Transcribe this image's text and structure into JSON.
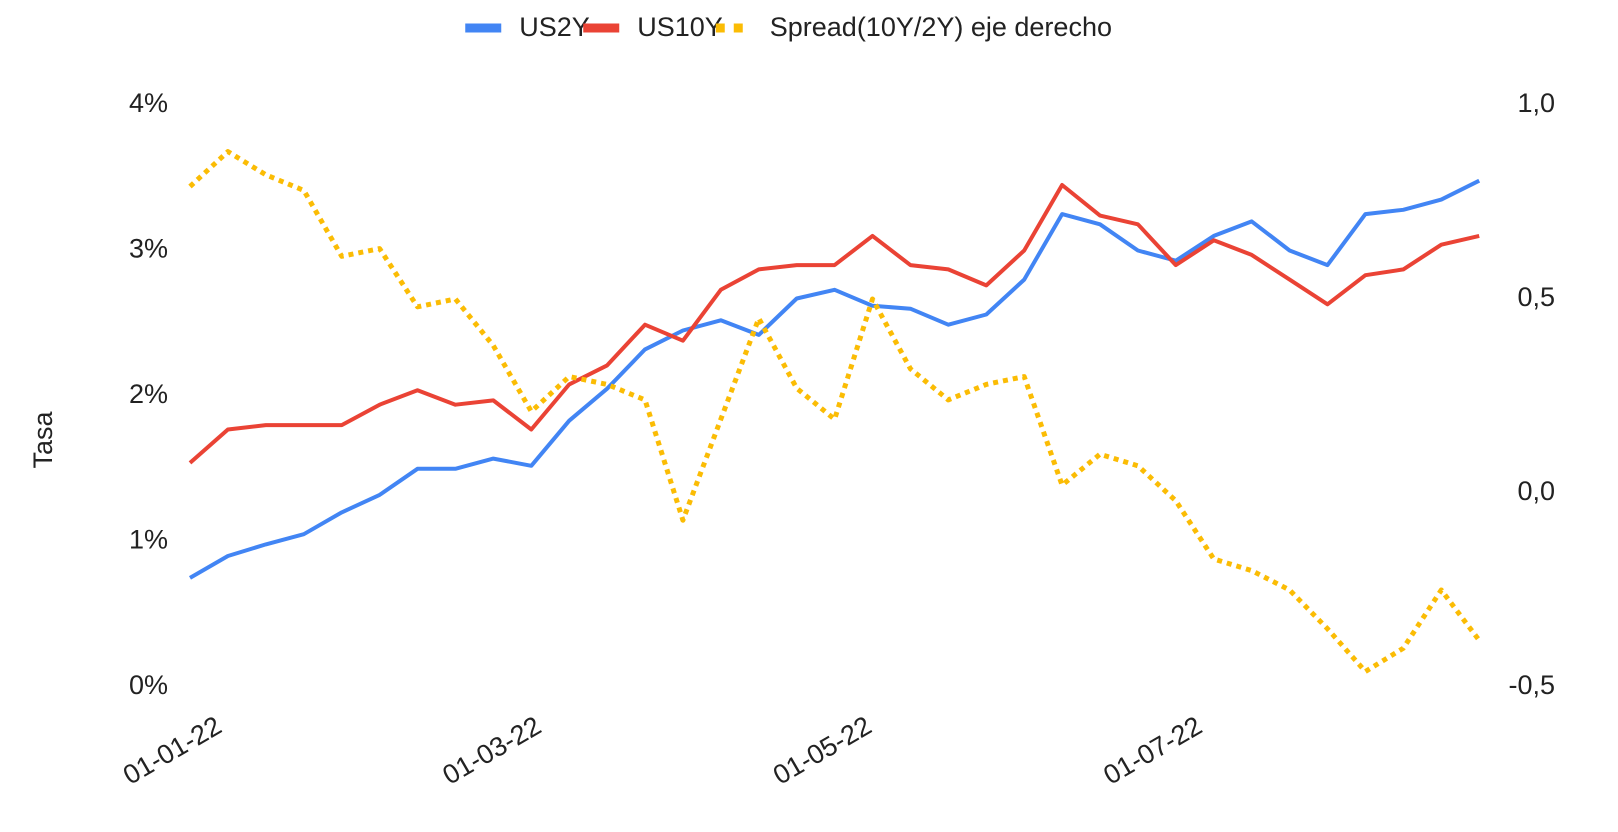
{
  "chart_data": {
    "type": "line",
    "y_label": "Tasa",
    "legend": "top",
    "x": [
      "2022-01-01",
      "2022-01-08",
      "2022-01-15",
      "2022-01-22",
      "2022-01-29",
      "2022-02-05",
      "2022-02-12",
      "2022-02-19",
      "2022-02-26",
      "2022-03-05",
      "2022-03-12",
      "2022-03-19",
      "2022-03-26",
      "2022-04-02",
      "2022-04-09",
      "2022-04-16",
      "2022-04-23",
      "2022-04-30",
      "2022-05-07",
      "2022-05-14",
      "2022-05-21",
      "2022-05-28",
      "2022-06-04",
      "2022-06-11",
      "2022-06-18",
      "2022-06-25",
      "2022-07-02",
      "2022-07-09",
      "2022-07-16",
      "2022-07-23",
      "2022-07-30",
      "2022-08-06",
      "2022-08-13",
      "2022-08-20",
      "2022-08-27"
    ],
    "xlim": [
      "2022-01-01",
      "2022-08-29"
    ],
    "xticks": [
      {
        "value": "2022-01-01",
        "label": "01-01-22"
      },
      {
        "value": "2022-03-01",
        "label": "01-03-22"
      },
      {
        "value": "2022-05-01",
        "label": "01-05-22"
      },
      {
        "value": "2022-07-01",
        "label": "01-07-22"
      }
    ],
    "ylim": [
      0,
      4
    ],
    "yticks": [
      {
        "value": 0,
        "label": "0%"
      },
      {
        "value": 1,
        "label": "1%"
      },
      {
        "value": 2,
        "label": "2%"
      },
      {
        "value": 3,
        "label": "3%"
      },
      {
        "value": 4,
        "label": "4%"
      }
    ],
    "y2lim": [
      -0.5,
      1
    ],
    "y2ticks": [
      {
        "value": -0.5,
        "label": "-0,5"
      },
      {
        "value": 0,
        "label": "0,0"
      },
      {
        "value": 0.5,
        "label": "0,5"
      },
      {
        "value": 1,
        "label": "1,0"
      }
    ],
    "series": [
      {
        "name": "US2Y",
        "color": "#4285f4",
        "style": "solid",
        "values": [
          0.75,
          0.9,
          0.98,
          1.05,
          1.2,
          1.32,
          1.5,
          1.5,
          1.57,
          1.52,
          1.83,
          2.05,
          2.32,
          2.45,
          2.52,
          2.42,
          2.67,
          2.73,
          2.62,
          2.6,
          2.49,
          2.56,
          2.8,
          3.25,
          3.18,
          3.0,
          2.93,
          3.1,
          3.2,
          3.0,
          2.9,
          3.25,
          3.28,
          3.35,
          3.48
        ]
      },
      {
        "name": "US10Y",
        "color": "#ea4335",
        "style": "solid",
        "values": [
          1.54,
          1.77,
          1.8,
          1.8,
          1.8,
          1.94,
          2.04,
          1.94,
          1.97,
          1.77,
          2.08,
          2.21,
          2.49,
          2.38,
          2.73,
          2.87,
          2.9,
          2.9,
          3.1,
          2.9,
          2.87,
          2.76,
          3.0,
          3.45,
          3.24,
          3.18,
          2.9,
          3.07,
          2.97,
          2.8,
          2.63,
          2.83,
          2.87,
          3.04,
          3.1
        ]
      },
      {
        "name": "Spread(10Y/2Y) eje derecho",
        "color": "#fbbc04",
        "style": "dotted",
        "axis": "y2",
        "values": [
          0.79,
          0.88,
          0.82,
          0.78,
          0.61,
          0.63,
          0.48,
          0.5,
          0.38,
          0.21,
          0.3,
          0.28,
          0.24,
          -0.07,
          0.19,
          0.45,
          0.27,
          0.19,
          0.5,
          0.32,
          0.24,
          0.28,
          0.3,
          0.02,
          0.1,
          0.07,
          -0.02,
          -0.17,
          -0.2,
          -0.25,
          -0.35,
          -0.46,
          -0.4,
          -0.25,
          -0.38
        ]
      }
    ]
  }
}
